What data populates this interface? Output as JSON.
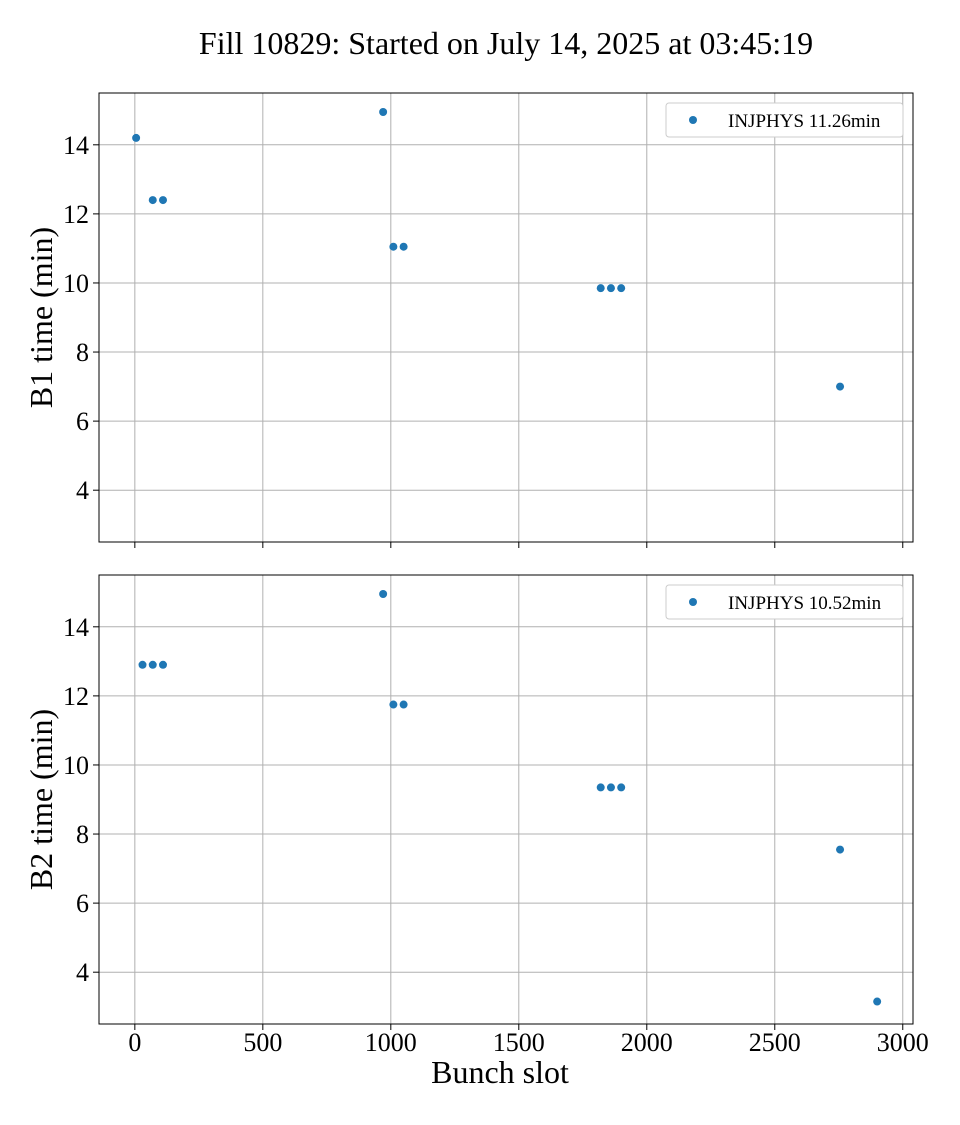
{
  "title": "Fill 10829: Started on July 14, 2025 at 03:45:19",
  "colors": {
    "series": "#1f77b4"
  },
  "chart_data": [
    {
      "type": "scatter",
      "xlabel": "",
      "ylabel": "B1 time (min)",
      "xlim": [
        -140,
        3040
      ],
      "ylim": [
        2.5,
        15.5
      ],
      "xticks": [
        0,
        500,
        1000,
        1500,
        2000,
        2500,
        3000
      ],
      "xtick_labels_visible": false,
      "yticks": [
        4,
        6,
        8,
        10,
        12,
        14
      ],
      "grid": true,
      "legend_position": "top-right",
      "series": [
        {
          "name": "INJPHYS 11.26min",
          "x": [
            5,
            70,
            110,
            970,
            1010,
            1050,
            1820,
            1860,
            1900,
            2755
          ],
          "y": [
            14.2,
            12.4,
            12.4,
            14.95,
            11.05,
            11.05,
            9.85,
            9.85,
            9.85,
            7.0
          ]
        }
      ]
    },
    {
      "type": "scatter",
      "xlabel": "Bunch slot",
      "ylabel": "B2 time (min)",
      "xlim": [
        -140,
        3040
      ],
      "ylim": [
        2.5,
        15.5
      ],
      "xticks": [
        0,
        500,
        1000,
        1500,
        2000,
        2500,
        3000
      ],
      "xtick_labels_visible": true,
      "yticks": [
        4,
        6,
        8,
        10,
        12,
        14
      ],
      "grid": true,
      "legend_position": "top-right",
      "series": [
        {
          "name": "INJPHYS 10.52min",
          "x": [
            30,
            70,
            110,
            970,
            1010,
            1050,
            1820,
            1860,
            1900,
            2755,
            2900
          ],
          "y": [
            12.9,
            12.9,
            12.9,
            14.95,
            11.75,
            11.75,
            9.35,
            9.35,
            9.35,
            7.55,
            3.15
          ]
        }
      ]
    }
  ]
}
